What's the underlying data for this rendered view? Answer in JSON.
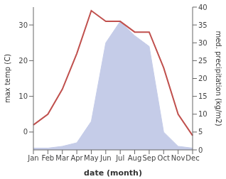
{
  "chart_data": {
    "type": "line",
    "xlabel": "date (month)",
    "ylabel": "max temp (C)",
    "y2label": "med. precipitation (kg/m2)",
    "categories": [
      "Jan",
      "Feb",
      "Mar",
      "Apr",
      "May",
      "Jun",
      "Jul",
      "Aug",
      "Sep",
      "Oct",
      "Nov",
      "Dec"
    ],
    "series": [
      {
        "type": "area",
        "axis": "y2",
        "color": "#c5cce8",
        "values": [
          0.5,
          0.5,
          1,
          2,
          8,
          30,
          36,
          32,
          29,
          5,
          1,
          0.5
        ]
      },
      {
        "type": "line",
        "color": "#c0504d",
        "values": [
          2,
          5,
          12,
          22,
          34,
          31,
          31,
          28,
          28,
          18,
          5,
          -1
        ]
      }
    ],
    "ylim": [
      -5,
      35
    ],
    "yticks": [
      0,
      10,
      20,
      30
    ],
    "y2lim": [
      0,
      40
    ],
    "y2ticks": [
      0,
      5,
      10,
      15,
      20,
      25,
      30,
      35,
      40
    ],
    "grid": false
  }
}
